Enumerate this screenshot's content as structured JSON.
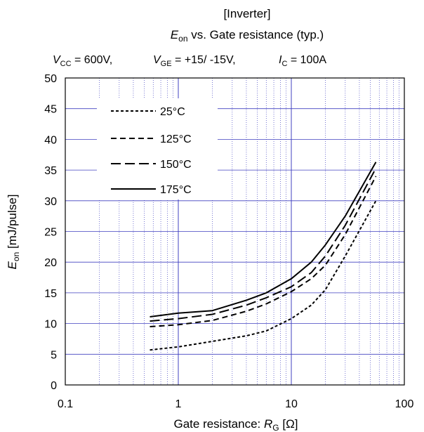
{
  "chart_data": {
    "type": "line",
    "title_line1": "[Inverter]",
    "title_line2": {
      "sym": "E",
      "sub": "on",
      "rest": " vs. Gate resistance  (typ.)"
    },
    "conditions": [
      {
        "sym": "V",
        "sub": "CC",
        "val": " = 600V,"
      },
      {
        "sym": "V",
        "sub": "GE",
        "val": " = +15/ -15V,"
      },
      {
        "sym": "I",
        "sub": "C",
        "val": " = 100A"
      }
    ],
    "xlabel": {
      "pre": "Gate resistance: ",
      "sym": "R",
      "sub": "G",
      "post": " [Ω]"
    },
    "ylabel": {
      "sym": "E",
      "sub": "on",
      "post": " [mJ/pulse]"
    },
    "x_scale": "log",
    "xlim": [
      0.1,
      100
    ],
    "ylim": [
      0,
      50
    ],
    "x_ticks": [
      {
        "v": 0.1,
        "label": "0.1"
      },
      {
        "v": 1,
        "label": "1"
      },
      {
        "v": 10,
        "label": "10"
      },
      {
        "v": 100,
        "label": "100"
      }
    ],
    "y_ticks": [
      0,
      5,
      10,
      15,
      20,
      25,
      30,
      35,
      40,
      45,
      50
    ],
    "grid": true,
    "legend_position": "top-left",
    "series": [
      {
        "name": "25°C",
        "dash": "4,3",
        "x": [
          0.56,
          1,
          2,
          4,
          6,
          10,
          15,
          20,
          30,
          56
        ],
        "y": [
          5.7,
          6.2,
          7.1,
          8.0,
          8.8,
          10.8,
          13.0,
          15.5,
          21.0,
          30.0
        ]
      },
      {
        "name": "125°C",
        "dash": "8,5",
        "x": [
          0.56,
          1,
          2,
          4,
          6,
          10,
          15,
          20,
          30,
          56
        ],
        "y": [
          9.5,
          9.8,
          10.5,
          12.0,
          13.2,
          15.2,
          17.3,
          19.5,
          24.5,
          34.0
        ]
      },
      {
        "name": "150°C",
        "dash": "14,6",
        "x": [
          0.56,
          1,
          2,
          4,
          6,
          10,
          15,
          20,
          30,
          56
        ],
        "y": [
          10.4,
          10.8,
          11.5,
          13.0,
          14.2,
          16.0,
          18.3,
          21.0,
          26.0,
          35.3
        ]
      },
      {
        "name": "175°C",
        "dash": "",
        "x": [
          0.56,
          1,
          2,
          4,
          6,
          10,
          15,
          20,
          30,
          56
        ],
        "y": [
          11.1,
          11.7,
          12.1,
          13.8,
          15.0,
          17.3,
          20.0,
          22.8,
          27.5,
          36.3
        ]
      }
    ],
    "colors": {
      "grid": "#4040c0",
      "line": "#000000",
      "frame": "#000000"
    }
  }
}
